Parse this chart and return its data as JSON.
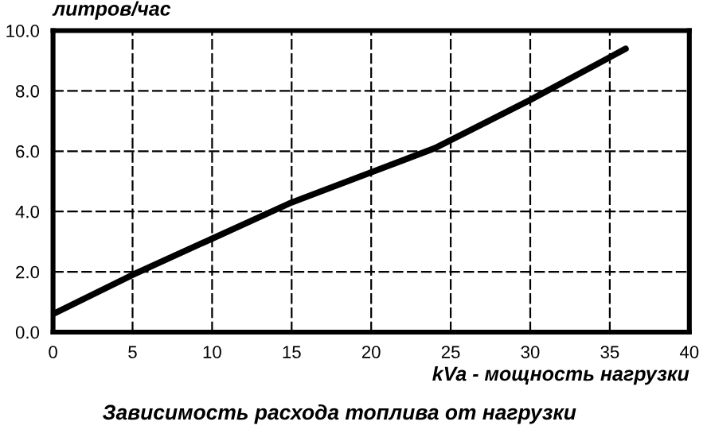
{
  "chart_data": {
    "type": "line",
    "ylabel": "литров/час",
    "xlabel": "kVa - мощность нагрузки",
    "annotations": [
      "Зависимость расхода топлива от нагрузки"
    ],
    "x": [
      0,
      5,
      10,
      15,
      20,
      24,
      30,
      36
    ],
    "series": [
      {
        "color": "#000000",
        "values": [
          0.6,
          1.9,
          3.1,
          4.3,
          5.3,
          6.1,
          7.7,
          9.4
        ]
      }
    ],
    "xlim": [
      0,
      40
    ],
    "xticks": [
      0,
      5,
      10,
      15,
      20,
      25,
      30,
      35,
      40
    ],
    "ylim": [
      0,
      10
    ],
    "yticks": [
      {
        "value": 0,
        "label": "0.0"
      },
      {
        "value": 2,
        "label": "2.0"
      },
      {
        "value": 4,
        "label": "4.0"
      },
      {
        "value": 6,
        "label": "6.0"
      },
      {
        "value": 8,
        "label": "8.0"
      },
      {
        "value": 10,
        "label": "10.0"
      }
    ],
    "grid": true,
    "line_style": "solid",
    "marker": "none"
  }
}
